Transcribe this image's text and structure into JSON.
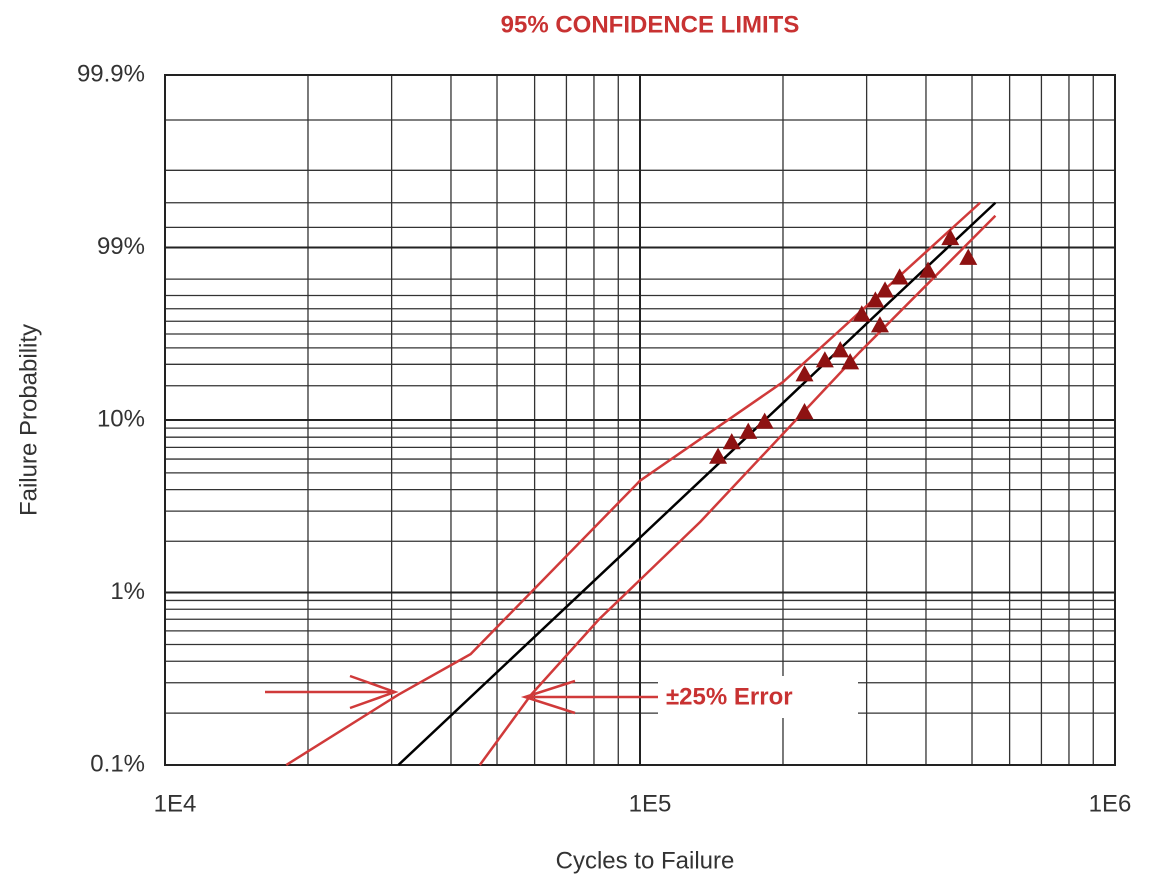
{
  "chart_data": {
    "type": "line",
    "title": "95% CONFIDENCE LIMITS",
    "xlabel": "Cycles to Failure",
    "ylabel": "Failure Probability",
    "annotation": "±25% Error",
    "xscale": "log",
    "yscale": "probability",
    "xlim": [
      10000,
      1000000
    ],
    "xticks": [
      {
        "value": 10000,
        "label": "1E4"
      },
      {
        "value": 100000,
        "label": "1E5"
      },
      {
        "value": 1000000,
        "label": "1E6"
      }
    ],
    "xgrid_minor": [
      20000,
      30000,
      40000,
      50000,
      60000,
      70000,
      80000,
      90000,
      200000,
      300000,
      400000,
      500000,
      600000,
      700000,
      800000,
      900000
    ],
    "ylim": [
      0.1,
      99.9
    ],
    "yticks": [
      {
        "value": 0.1,
        "label": "0.1%"
      },
      {
        "value": 1,
        "label": "1%"
      },
      {
        "value": 10,
        "label": "10%"
      },
      {
        "value": 99,
        "label": "99%"
      },
      {
        "value": 99.9,
        "label": "99.9%"
      }
    ],
    "ygrid_minor": [
      0.2,
      0.3,
      0.4,
      0.5,
      0.6,
      0.7,
      0.8,
      0.9,
      2,
      3,
      4,
      5,
      6,
      7,
      8,
      9,
      20,
      30,
      40,
      50,
      60,
      70,
      80,
      90,
      99.2,
      99.4,
      99.6,
      99.8
    ],
    "grid": true,
    "title_color": "#c83232",
    "series": [
      {
        "type": "line",
        "color": "#d03a3a",
        "x": [
          18000,
          31000,
          44000,
          100000,
          200000,
          520000
        ],
        "values": [
          0.1,
          0.256,
          0.44,
          4.5,
          21.5,
          99.4
        ]
      },
      {
        "type": "line",
        "color": "#d03a3a",
        "x": [
          46000,
          59000,
          82000,
          134000,
          290000,
          560000
        ],
        "values": [
          0.1,
          0.256,
          0.7,
          2.6,
          37.2,
          99.3
        ]
      },
      {
        "type": "line",
        "color": "#000000",
        "x": [
          31000,
          100000,
          200000,
          305000,
          560000
        ],
        "values": [
          0.1,
          2.1,
          14.2,
          60.7,
          99.4
        ]
      },
      {
        "type": "scatter",
        "color": "#8e1212",
        "x": [
          146000,
          156000,
          169000,
          183000,
          222000,
          222000,
          245000,
          264000,
          277000,
          293000,
          313000,
          328000,
          320000,
          352000,
          404000,
          450000,
          491000
        ],
        "values": [
          6.2,
          7.5,
          8.6,
          9.8,
          11.8,
          25.0,
          32.3,
          38.5,
          31.2,
          65.6,
          76.5,
          83.5,
          56.8,
          90.9,
          93.8,
          99.1,
          97.5
        ]
      }
    ]
  }
}
